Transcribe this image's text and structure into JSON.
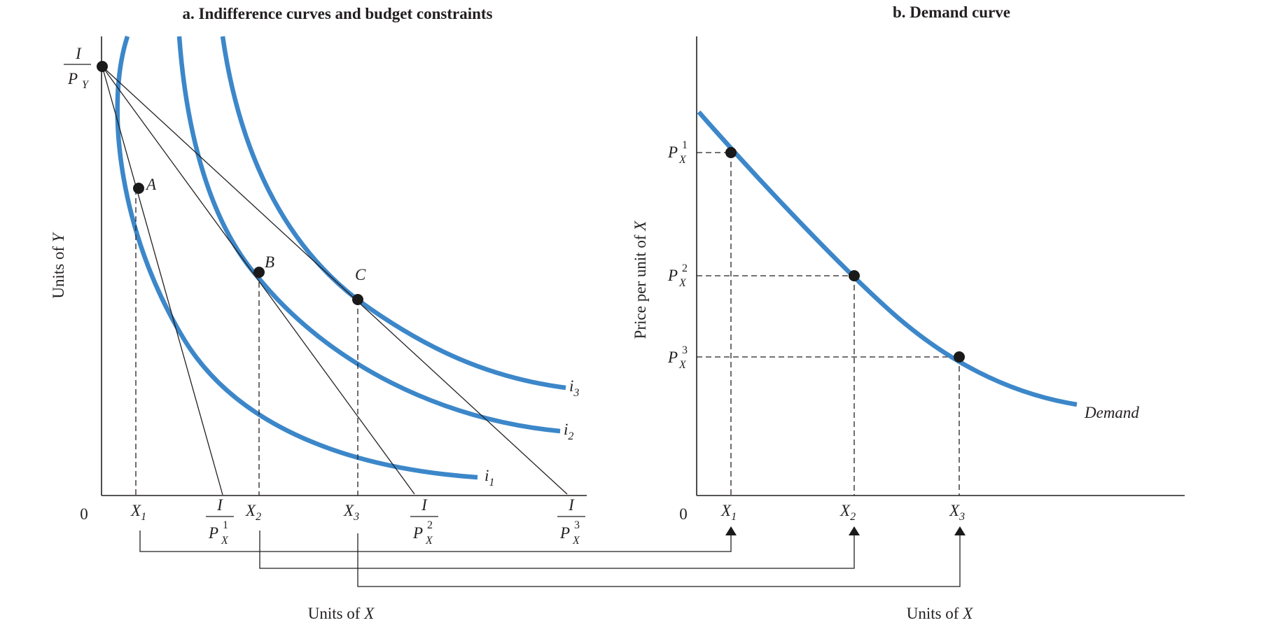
{
  "panel_a": {
    "title": "a. Indifference curves and budget constraints",
    "y_axis_label_prefix": "Units of ",
    "y_axis_label_var": "Y",
    "x_axis_label_prefix": "Units of ",
    "x_axis_label_var": "X",
    "origin_label": "0",
    "y_intercept": {
      "num": "I",
      "den": "P",
      "den_sub": "Y"
    },
    "points": [
      {
        "id": "A",
        "label": "A"
      },
      {
        "id": "B",
        "label": "B"
      },
      {
        "id": "C",
        "label": "C"
      }
    ],
    "curves": [
      {
        "name": "i",
        "sub": "1"
      },
      {
        "name": "i",
        "sub": "2"
      },
      {
        "name": "i",
        "sub": "3"
      }
    ],
    "x_ticks": [
      {
        "main": "X",
        "sub": "1"
      },
      {
        "main": "X",
        "sub": "2"
      },
      {
        "main": "X",
        "sub": "3"
      }
    ],
    "x_intercepts": [
      {
        "num": "I",
        "den": "P",
        "den_sub": "X",
        "den_sup": "1"
      },
      {
        "num": "I",
        "den": "P",
        "den_sub": "X",
        "den_sup": "2"
      },
      {
        "num": "I",
        "den": "P",
        "den_sub": "X",
        "den_sup": "3"
      }
    ]
  },
  "panel_b": {
    "title": "b. Demand curve",
    "y_axis_label_prefix": "Price per unit of ",
    "y_axis_label_var": "X",
    "x_axis_label_prefix": "Units of ",
    "x_axis_label_var": "X",
    "origin_label": "0",
    "price_ticks": [
      {
        "main": "P",
        "sub": "X",
        "sup": "1"
      },
      {
        "main": "P",
        "sub": "X",
        "sup": "2"
      },
      {
        "main": "P",
        "sub": "X",
        "sup": "3"
      }
    ],
    "x_ticks": [
      {
        "main": "X",
        "sub": "1"
      },
      {
        "main": "X",
        "sub": "2"
      },
      {
        "main": "X",
        "sub": "3"
      }
    ],
    "curve_label": "Demand"
  },
  "colors": {
    "curve": "#3c87c9",
    "ink": "#231f20",
    "background": "#ffffff"
  }
}
